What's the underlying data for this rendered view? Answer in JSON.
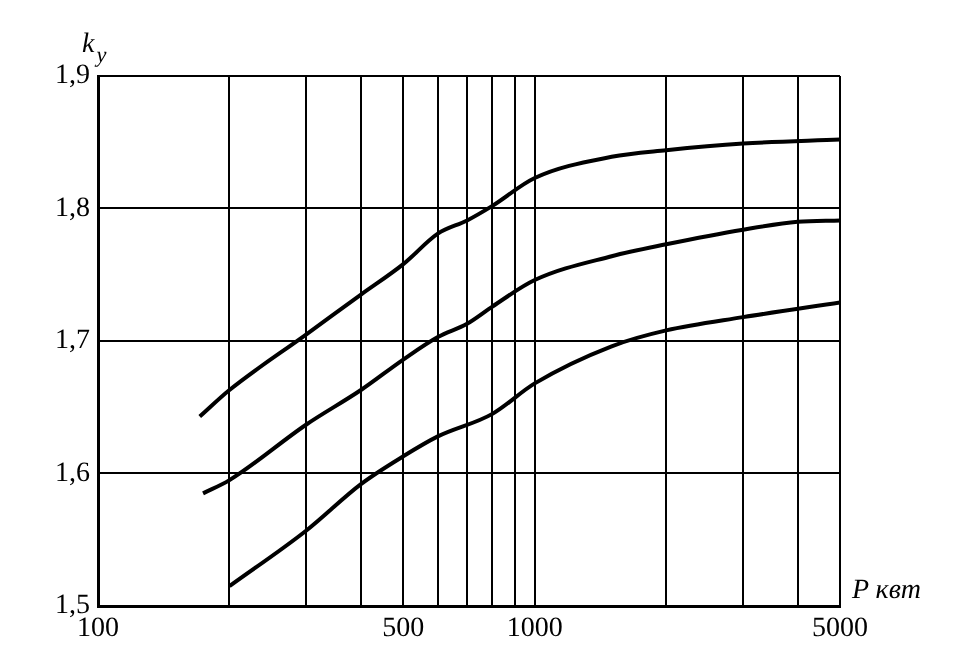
{
  "chart_data": {
    "type": "line",
    "xlabel": "P квт",
    "ylabel": "k$_{y}$",
    "log": "x",
    "xlim": [
      100,
      5000
    ],
    "xticks": [
      100,
      {
        "value": 200,
        "label": null
      },
      {
        "value": 300,
        "label": null
      },
      {
        "value": 400,
        "label": null
      },
      500,
      {
        "value": 600,
        "label": null
      },
      {
        "value": 700,
        "label": null
      },
      {
        "value": 800,
        "label": null
      },
      {
        "value": 900,
        "label": null
      },
      1000,
      {
        "value": 2000,
        "label": null
      },
      {
        "value": 3000,
        "label": null
      },
      {
        "value": 4000,
        "label": null
      },
      5000
    ],
    "ylim": [
      1.5,
      1.9
    ],
    "yticks": [
      {
        "value": 1.5,
        "label": "1,5"
      },
      {
        "value": 1.6,
        "label": "1,6"
      },
      {
        "value": 1.7,
        "label": "1,7"
      },
      {
        "value": 1.8,
        "label": "1,8"
      },
      {
        "value": 1.9,
        "label": "1,9"
      }
    ],
    "grid": true,
    "legend": false,
    "marker": "none",
    "line_style": "solid",
    "series": [
      {
        "color": "#000000",
        "x": [
          171,
          200,
          300,
          400,
          500,
          600,
          700,
          800,
          1000,
          1500,
          2000,
          3000,
          5000
        ],
        "values": [
          1.643,
          1.663,
          1.705,
          1.735,
          1.758,
          1.781,
          1.791,
          1.802,
          1.823,
          1.839,
          1.844,
          1.849,
          1.852
        ]
      },
      {
        "color": "#000000",
        "x": [
          174,
          200,
          300,
          400,
          500,
          600,
          700,
          800,
          1000,
          1500,
          2000,
          3000,
          4000,
          5000
        ],
        "values": [
          1.585,
          1.595,
          1.637,
          1.663,
          1.686,
          1.703,
          1.713,
          1.726,
          1.746,
          1.764,
          1.773,
          1.784,
          1.79,
          1.791
        ]
      },
      {
        "color": "#000000",
        "x": [
          200,
          300,
          400,
          500,
          600,
          800,
          1000,
          1500,
          2000,
          3000,
          5000
        ],
        "values": [
          1.515,
          1.557,
          1.592,
          1.613,
          1.628,
          1.645,
          1.668,
          1.696,
          1.708,
          1.718,
          1.729
        ]
      }
    ]
  }
}
